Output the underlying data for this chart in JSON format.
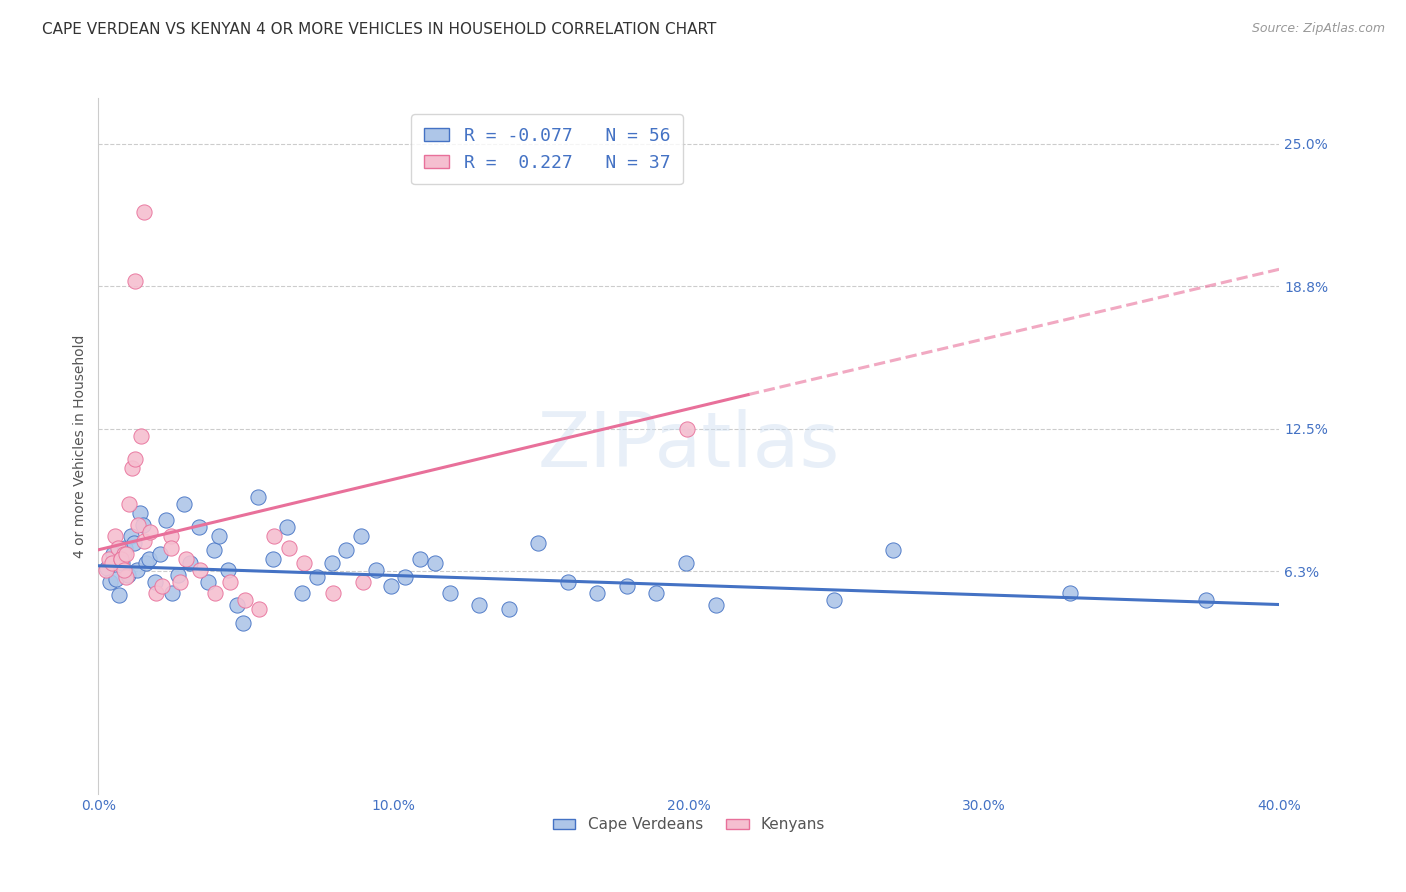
{
  "title": "CAPE VERDEAN VS KENYAN 4 OR MORE VEHICLES IN HOUSEHOLD CORRELATION CHART",
  "source": "Source: ZipAtlas.com",
  "xlabel_ticks": [
    "0.0%",
    "10.0%",
    "20.0%",
    "30.0%",
    "40.0%"
  ],
  "xlabel_tick_vals": [
    0.0,
    10.0,
    20.0,
    30.0,
    40.0
  ],
  "ylabel": "4 or more Vehicles in Household",
  "ylabel_ticks_right": [
    "25.0%",
    "18.8%",
    "12.5%",
    "6.3%"
  ],
  "ylabel_tick_vals": [
    25.0,
    18.75,
    12.5,
    6.25
  ],
  "xlim": [
    0.0,
    40.0
  ],
  "ylim": [
    -3.5,
    27.0
  ],
  "watermark": "ZIPatlas",
  "legend_label_blue": "R = -0.077   N = 56",
  "legend_label_pink": "R =  0.227   N = 37",
  "blue_scatter": [
    [
      0.3,
      6.4
    ],
    [
      0.4,
      5.8
    ],
    [
      0.5,
      7.0
    ],
    [
      0.6,
      5.9
    ],
    [
      0.7,
      5.2
    ],
    [
      0.8,
      6.6
    ],
    [
      0.9,
      7.3
    ],
    [
      1.0,
      6.1
    ],
    [
      1.1,
      7.8
    ],
    [
      1.2,
      7.5
    ],
    [
      1.3,
      6.3
    ],
    [
      1.4,
      8.8
    ],
    [
      1.5,
      8.3
    ],
    [
      1.6,
      6.6
    ],
    [
      1.7,
      6.8
    ],
    [
      1.9,
      5.8
    ],
    [
      2.1,
      7.0
    ],
    [
      2.3,
      8.5
    ],
    [
      2.5,
      5.3
    ],
    [
      2.7,
      6.1
    ],
    [
      2.9,
      9.2
    ],
    [
      3.1,
      6.6
    ],
    [
      3.4,
      8.2
    ],
    [
      3.7,
      5.8
    ],
    [
      3.9,
      7.2
    ],
    [
      4.1,
      7.8
    ],
    [
      4.4,
      6.3
    ],
    [
      4.7,
      4.8
    ],
    [
      4.9,
      4.0
    ],
    [
      5.4,
      9.5
    ],
    [
      5.9,
      6.8
    ],
    [
      6.4,
      8.2
    ],
    [
      6.9,
      5.3
    ],
    [
      7.4,
      6.0
    ],
    [
      7.9,
      6.6
    ],
    [
      8.4,
      7.2
    ],
    [
      8.9,
      7.8
    ],
    [
      9.4,
      6.3
    ],
    [
      9.9,
      5.6
    ],
    [
      10.4,
      6.0
    ],
    [
      10.9,
      6.8
    ],
    [
      11.4,
      6.6
    ],
    [
      11.9,
      5.3
    ],
    [
      12.9,
      4.8
    ],
    [
      13.9,
      4.6
    ],
    [
      14.9,
      7.5
    ],
    [
      15.9,
      5.8
    ],
    [
      16.9,
      5.3
    ],
    [
      17.9,
      5.6
    ],
    [
      18.9,
      5.3
    ],
    [
      19.9,
      6.6
    ],
    [
      20.9,
      4.8
    ],
    [
      24.9,
      5.0
    ],
    [
      26.9,
      7.2
    ],
    [
      32.9,
      5.3
    ],
    [
      37.5,
      5.0
    ]
  ],
  "pink_scatter": [
    [
      0.25,
      6.3
    ],
    [
      0.35,
      6.8
    ],
    [
      0.45,
      6.6
    ],
    [
      0.55,
      7.8
    ],
    [
      0.65,
      7.3
    ],
    [
      0.75,
      6.8
    ],
    [
      0.85,
      7.0
    ],
    [
      0.95,
      6.0
    ],
    [
      1.05,
      9.2
    ],
    [
      1.15,
      10.8
    ],
    [
      1.25,
      11.2
    ],
    [
      1.35,
      8.3
    ],
    [
      1.45,
      12.2
    ],
    [
      1.55,
      7.6
    ],
    [
      1.75,
      8.0
    ],
    [
      1.95,
      5.3
    ],
    [
      2.15,
      5.6
    ],
    [
      2.45,
      7.8
    ],
    [
      2.75,
      5.8
    ],
    [
      2.95,
      6.8
    ],
    [
      3.45,
      6.3
    ],
    [
      3.95,
      5.3
    ],
    [
      4.45,
      5.8
    ],
    [
      4.95,
      5.0
    ],
    [
      5.45,
      4.6
    ],
    [
      5.95,
      7.8
    ],
    [
      6.45,
      7.3
    ],
    [
      6.95,
      6.6
    ],
    [
      1.55,
      22.0
    ],
    [
      1.25,
      19.0
    ],
    [
      7.95,
      5.3
    ],
    [
      8.95,
      5.8
    ],
    [
      19.95,
      12.5
    ],
    [
      0.75,
      6.8
    ],
    [
      0.85,
      6.3
    ],
    [
      2.45,
      7.3
    ],
    [
      0.95,
      7.0
    ]
  ],
  "blue_line": {
    "x_start": 0.0,
    "x_end": 40.0,
    "y_start": 6.5,
    "y_end": 4.8
  },
  "pink_line_solid": {
    "x_start": 0.0,
    "x_end": 22.0,
    "y_start": 7.2,
    "y_end": 14.0
  },
  "pink_line_dash": {
    "x_start": 22.0,
    "x_end": 40.0,
    "y_start": 14.0,
    "y_end": 19.5
  },
  "blue_color": "#4472c4",
  "pink_color": "#e8709a",
  "blue_scatter_color": "#aec6e8",
  "pink_scatter_color": "#f5bfd0",
  "grid_color": "#cccccc",
  "background_color": "#ffffff",
  "title_fontsize": 11,
  "axis_label_fontsize": 10,
  "tick_fontsize": 10,
  "legend_fontsize": 13
}
